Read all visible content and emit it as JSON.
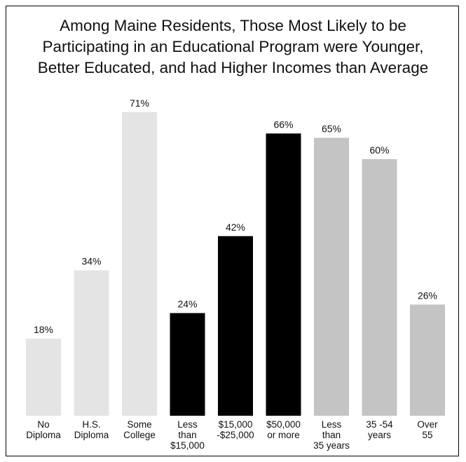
{
  "chart_data": {
    "type": "bar",
    "title_lines": [
      "Among Maine Residents, Those Most Likely to be",
      "Participating in an Educational Program were Younger,",
      "Better Educated, and had Higher Incomes than Average"
    ],
    "categories": [
      [
        "No",
        "Diploma"
      ],
      [
        "H.S.",
        "Diploma"
      ],
      [
        "Some",
        "College"
      ],
      [
        "Less",
        "than",
        "$15,000"
      ],
      [
        "$15,000",
        "-$25,000"
      ],
      [
        "$50,000",
        "or more"
      ],
      [
        "Less",
        "than",
        "35 years"
      ],
      [
        "35 -54",
        "years"
      ],
      [
        "Over",
        "55"
      ]
    ],
    "values": [
      18,
      34,
      71,
      24,
      42,
      66,
      65,
      60,
      26
    ],
    "data_labels": [
      "18%",
      "34%",
      "71%",
      "24%",
      "42%",
      "66%",
      "65%",
      "60%",
      "26%"
    ],
    "bar_colors": [
      "#e4e4e4",
      "#e4e4e4",
      "#e4e4e4",
      "#000000",
      "#000000",
      "#000000",
      "#c4c4c4",
      "#c4c4c4",
      "#c4c4c4"
    ],
    "ylim": [
      0,
      100
    ],
    "grid": false,
    "legend": "none"
  }
}
